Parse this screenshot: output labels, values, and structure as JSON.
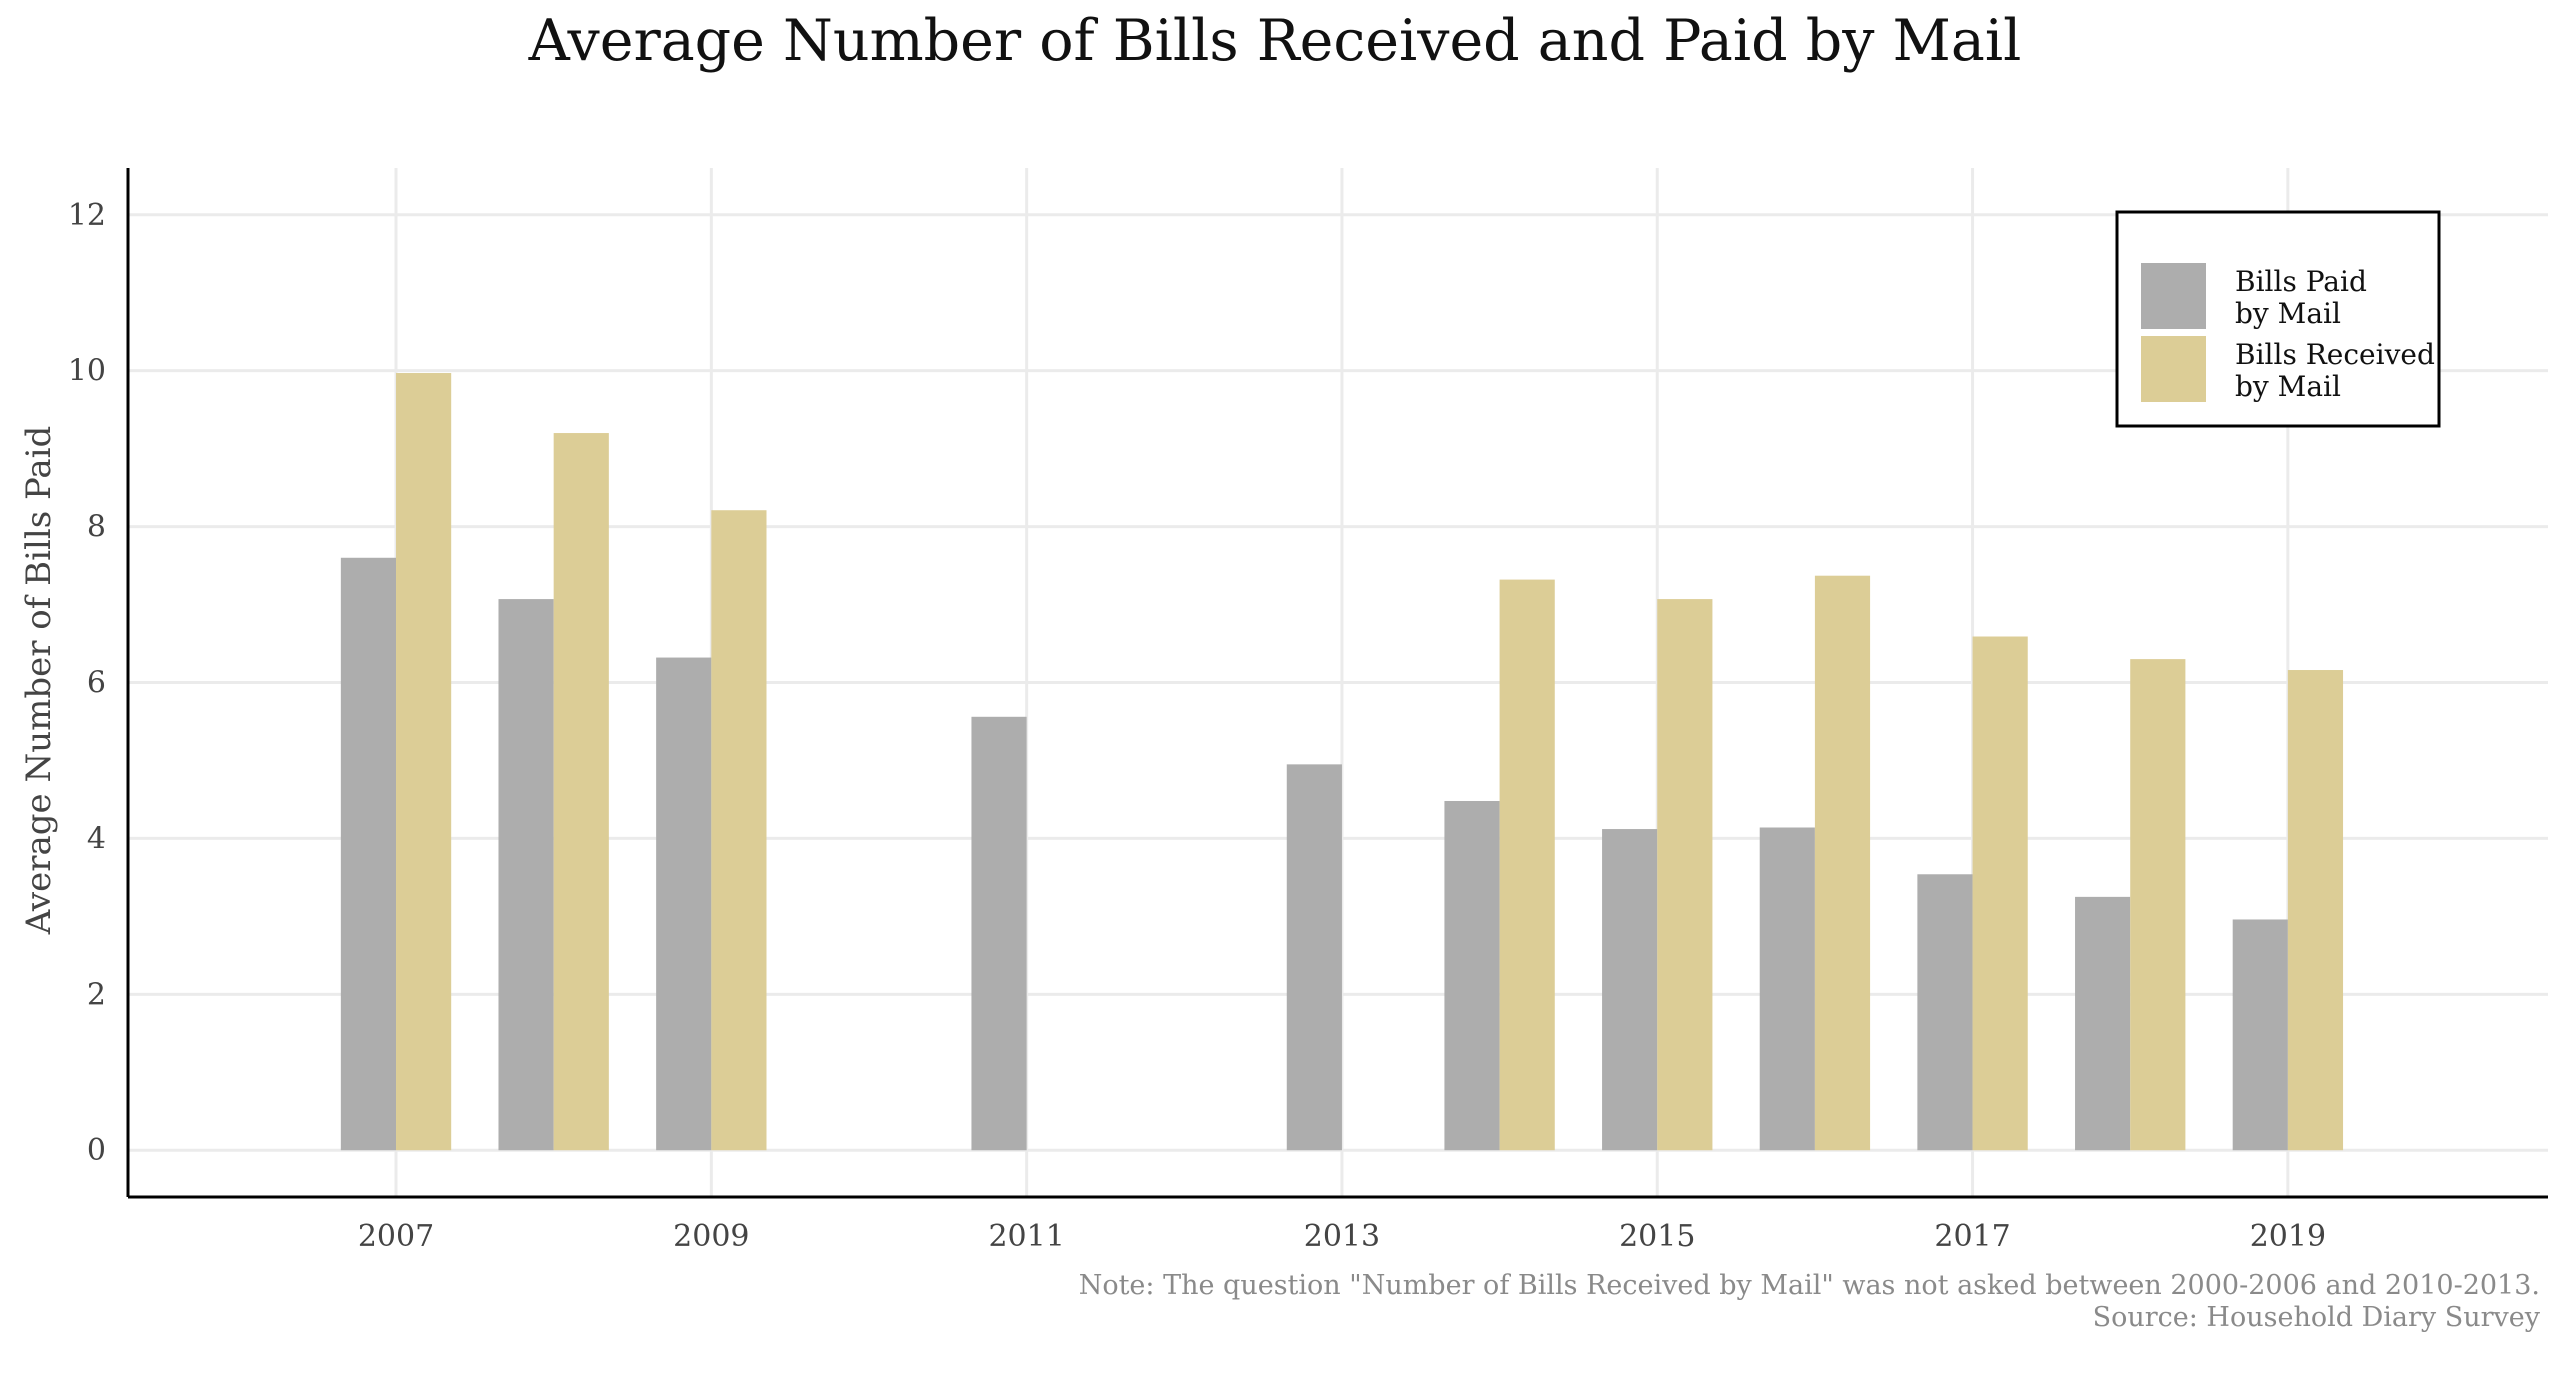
{
  "chart_data": {
    "type": "bar",
    "title": "Average Number of Bills Received and Paid by Mail",
    "xlabel": "",
    "ylabel": "Average Number of Bills Paid",
    "x": [
      2007,
      2008,
      2009,
      2011,
      2013,
      2014,
      2015,
      2016,
      2017,
      2018,
      2019
    ],
    "x_tick_labels": [
      "2007",
      "2009",
      "2011",
      "2013",
      "2015",
      "2017",
      "2019"
    ],
    "x_ticks": [
      2007,
      2009,
      2011,
      2013,
      2015,
      2017,
      2019
    ],
    "xlim": [
      2005.3,
      2020.65
    ],
    "y_ticks": [
      0,
      2,
      4,
      6,
      8,
      10,
      12
    ],
    "y_tick_labels": [
      "0",
      "2",
      "4",
      "6",
      "8",
      "10",
      "12"
    ],
    "ylim": [
      -0.6,
      12.6
    ],
    "grid": true,
    "legend_position": "top-right",
    "series": [
      {
        "name": "Bills Paid by Mail",
        "legend_lines": [
          "Bills Paid",
          "by Mail"
        ],
        "color": "#adadad",
        "values": [
          7.6,
          7.07,
          6.32,
          5.56,
          4.95,
          4.48,
          4.12,
          4.14,
          3.54,
          3.25,
          2.96
        ]
      },
      {
        "name": "Bills Received by Mail",
        "legend_lines": [
          "Bills Received",
          "by Mail"
        ],
        "color": "#dccd96",
        "values": [
          9.97,
          9.2,
          8.21,
          null,
          null,
          7.32,
          7.07,
          7.37,
          6.59,
          6.3,
          6.16
        ]
      }
    ],
    "annotations": [
      "Note: The question \"Number of Bills Received by Mail\" was not asked between 2000-2006 and 2010-2013.",
      "Source: Household Diary Survey"
    ]
  }
}
